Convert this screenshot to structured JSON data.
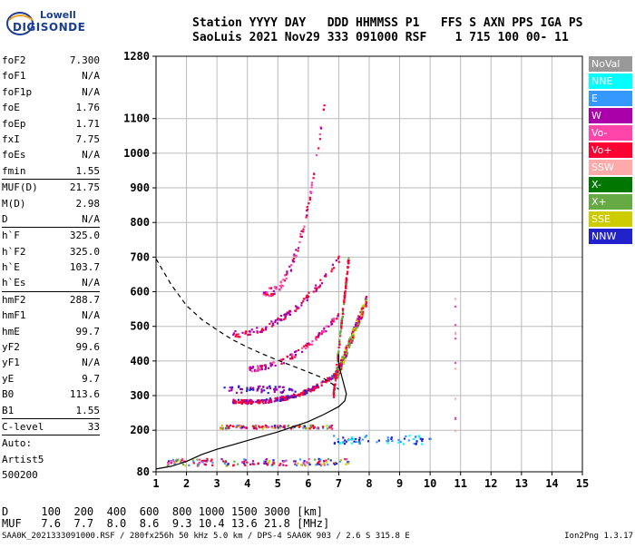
{
  "logo": {
    "line1": "Lowell",
    "line2": "DIGISONDE"
  },
  "header": {
    "line1": "Station YYYY DAY   DDD HHMMSS P1   FFS S AXN PPS IGA PS",
    "line2": "SaoLuis 2021 Nov29 333 091000 RSF    1 715 100 00- 11"
  },
  "params": [
    {
      "name": "foF2",
      "value": "7.300"
    },
    {
      "name": "foF1",
      "value": "N/A"
    },
    {
      "name": "foF1p",
      "value": "N/A"
    },
    {
      "name": "foE",
      "value": "1.76"
    },
    {
      "name": "foEp",
      "value": "1.71"
    },
    {
      "name": "fxI",
      "value": "7.75"
    },
    {
      "name": "foEs",
      "value": "N/A"
    },
    {
      "name": "fmin",
      "value": "1.55",
      "sep": true
    },
    {
      "name": "MUF(D)",
      "value": "21.75"
    },
    {
      "name": "M(D)",
      "value": "2.98"
    },
    {
      "name": "D",
      "value": "N/A",
      "sep": true
    },
    {
      "name": "h`F",
      "value": "325.0"
    },
    {
      "name": "h`F2",
      "value": "325.0"
    },
    {
      "name": "h`E",
      "value": "103.7"
    },
    {
      "name": "h`Es",
      "value": "N/A",
      "sep": true
    },
    {
      "name": "hmF2",
      "value": "288.7"
    },
    {
      "name": "hmF1",
      "value": "N/A"
    },
    {
      "name": "hmE",
      "value": "99.7"
    },
    {
      "name": "yF2",
      "value": "99.6"
    },
    {
      "name": "yF1",
      "value": "N/A"
    },
    {
      "name": "yE",
      "value": "9.7"
    },
    {
      "name": "B0",
      "value": "113.6"
    },
    {
      "name": "B1",
      "value": "1.55",
      "sep": true
    },
    {
      "name": "C-level",
      "value": "33",
      "sep": true
    },
    {
      "name": "Auto:",
      "value": ""
    },
    {
      "name": "Artist5",
      "value": ""
    },
    {
      "name": "500200",
      "value": ""
    }
  ],
  "legend": [
    {
      "label": "NoVal",
      "color": "#999999"
    },
    {
      "label": "NNE",
      "color": "#00ffff"
    },
    {
      "label": "E",
      "color": "#3399ff"
    },
    {
      "label": "W",
      "color": "#aa00aa"
    },
    {
      "label": "Vo-",
      "color": "#ff44aa"
    },
    {
      "label": "Vo+",
      "color": "#ff0033"
    },
    {
      "label": "SSW",
      "color": "#ffaaaa"
    },
    {
      "label": "X-",
      "color": "#007700"
    },
    {
      "label": "X+",
      "color": "#66aa44"
    },
    {
      "label": "SSE",
      "color": "#cccc00"
    },
    {
      "label": "NNW",
      "color": "#2222cc"
    }
  ],
  "muf_table": {
    "line1": "D     100  200  400  600  800 1000 1500 3000 [km]",
    "line2": "MUF   7.6  7.7  8.0  8.6  9.3 10.4 13.6 21.8 [MHz]"
  },
  "footer": {
    "left": "SAA0K_2021333091000.RSF / 280fx256h 50 kHz 5.0 km / DPS-4 SAA0K 903 / 2.6 S 315.8 E",
    "right": "Ion2Png 1.3.17"
  },
  "chart_data": {
    "type": "scatter",
    "x_ticks": [
      "1",
      "2",
      "3",
      "4",
      "5",
      "6",
      "7",
      "8",
      "9",
      "10",
      "11",
      "12",
      "13",
      "14",
      "15"
    ],
    "y_ticks": [
      "80",
      "200",
      "300",
      "400",
      "500",
      "600",
      "700",
      "800",
      "900",
      "1000",
      "1100",
      "1280"
    ],
    "xlim": [
      1,
      15
    ],
    "ylim": [
      80,
      1280
    ],
    "grid": true,
    "series": [
      {
        "type": "line",
        "style": "dashed",
        "color": "#000000",
        "points": [
          [
            1.0,
            695
          ],
          [
            1.5,
            620
          ],
          [
            2.0,
            560
          ],
          [
            2.5,
            520
          ],
          [
            3.0,
            490
          ],
          [
            3.5,
            462
          ],
          [
            4.0,
            440
          ],
          [
            4.5,
            420
          ],
          [
            5.0,
            402
          ],
          [
            5.5,
            385
          ],
          [
            6.0,
            368
          ],
          [
            6.5,
            350
          ],
          [
            6.8,
            333
          ],
          [
            7.0,
            318
          ]
        ]
      },
      {
        "type": "line",
        "style": "solid",
        "color": "#000000",
        "points": [
          [
            1.0,
            88
          ],
          [
            1.5,
            96
          ],
          [
            2.0,
            110
          ],
          [
            2.5,
            130
          ],
          [
            3.0,
            145
          ],
          [
            4.0,
            170
          ],
          [
            5.0,
            195
          ],
          [
            6.0,
            225
          ],
          [
            6.5,
            245
          ],
          [
            7.0,
            268
          ],
          [
            7.2,
            285
          ],
          [
            7.25,
            305
          ],
          [
            7.1,
            355
          ],
          [
            7.0,
            390
          ],
          [
            7.0,
            420
          ]
        ]
      }
    ]
  }
}
